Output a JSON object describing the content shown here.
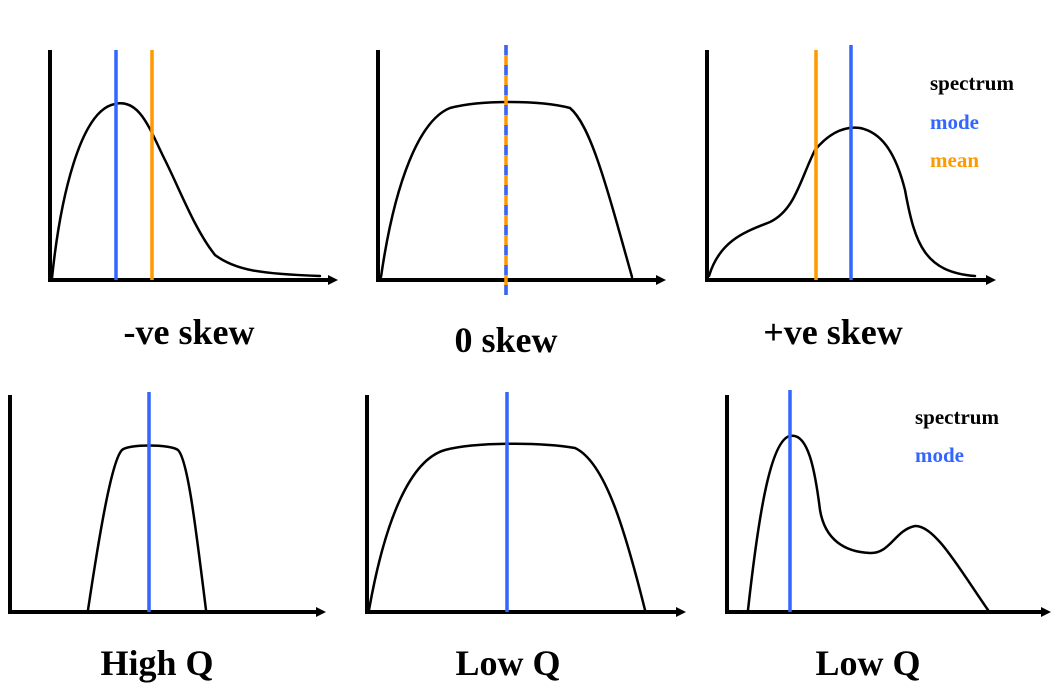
{
  "colors": {
    "spectrum": "#000000",
    "mode": "#3366ff",
    "mean": "#ff9900"
  },
  "panels": [
    {
      "caption": "-ve skew",
      "markers": [
        "mode",
        "mean"
      ]
    },
    {
      "caption": "0 skew",
      "markers": [
        "mode",
        "mean"
      ],
      "overlap": true
    },
    {
      "caption": "+ve skew",
      "markers": [
        "mean",
        "mode"
      ]
    },
    {
      "caption": "High Q",
      "markers": [
        "mode"
      ]
    },
    {
      "caption": "Low Q",
      "markers": [
        "mode"
      ]
    },
    {
      "caption": "Low Q",
      "markers": [
        "mode"
      ]
    }
  ],
  "legends": [
    {
      "items": [
        {
          "label": "spectrum",
          "color": "#000000"
        },
        {
          "label": "mode",
          "color": "#3366ff"
        },
        {
          "label": "mean",
          "color": "#ff9900"
        }
      ]
    },
    {
      "items": [
        {
          "label": "spectrum",
          "color": "#000000"
        },
        {
          "label": "mode",
          "color": "#3366ff"
        }
      ]
    }
  ]
}
